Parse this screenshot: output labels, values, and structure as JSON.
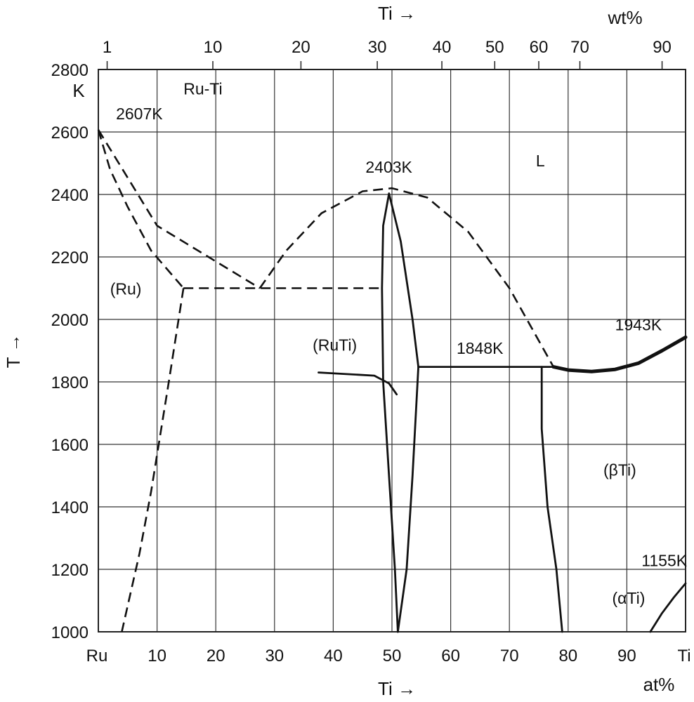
{
  "chart_data": {
    "type": "line",
    "title": "Ru-Ti",
    "xlabel_bottom": "Ti →",
    "xunit_bottom": "at%",
    "xlabel_top": "Ti →",
    "xunit_top": "wt%",
    "ylabel": "T →",
    "yunit": "K",
    "xlim": [
      0,
      100
    ],
    "ylim": [
      1000,
      2800
    ],
    "grid": true,
    "x_ticks": [
      {
        "value": 0,
        "label": "Ru"
      },
      {
        "value": 10,
        "label": "10"
      },
      {
        "value": 20,
        "label": "20"
      },
      {
        "value": 30,
        "label": "30"
      },
      {
        "value": 40,
        "label": "40"
      },
      {
        "value": 50,
        "label": "50"
      },
      {
        "value": 60,
        "label": "60"
      },
      {
        "value": 70,
        "label": "70"
      },
      {
        "value": 80,
        "label": "80"
      },
      {
        "value": 90,
        "label": "90"
      },
      {
        "value": 100,
        "label": "Ti"
      }
    ],
    "y_ticks": [
      1000,
      1200,
      1400,
      1600,
      1800,
      2000,
      2200,
      2400,
      2600,
      2800
    ],
    "top_ticks": [
      {
        "label": "1",
        "at": 1.5
      },
      {
        "label": "10",
        "at": 19.5
      },
      {
        "label": "20",
        "at": 34.5
      },
      {
        "label": "30",
        "at": 47.5
      },
      {
        "label": "40",
        "at": 58.5
      },
      {
        "label": "50",
        "at": 67.5
      },
      {
        "label": "60",
        "at": 75.0
      },
      {
        "label": "70",
        "at": 82.0
      },
      {
        "label": "90",
        "at": 96.0
      }
    ],
    "top_tick_markers": [
      1.5,
      19.5,
      34.5,
      47.5,
      58.5,
      67.5,
      75.0,
      82.0,
      96.0
    ],
    "annotations": [
      {
        "text": "2607K",
        "x": 3.0,
        "y": 2640
      },
      {
        "text": "Ru-Ti",
        "x": 14.5,
        "y": 2720
      },
      {
        "text": "2403K",
        "x": 45.5,
        "y": 2470
      },
      {
        "text": "L",
        "x": 74.5,
        "y": 2490
      },
      {
        "text": "(Ru)",
        "x": 2.0,
        "y": 2080
      },
      {
        "text": "(RuTi)",
        "x": 36.5,
        "y": 1900
      },
      {
        "text": "1848K",
        "x": 61.0,
        "y": 1890
      },
      {
        "text": "1943K",
        "x": 88.0,
        "y": 1965
      },
      {
        "text": "(βTi)",
        "x": 86.0,
        "y": 1500
      },
      {
        "text": "1155K",
        "x": 92.5,
        "y": 1210
      },
      {
        "text": "(αTi)",
        "x": 87.5,
        "y": 1090
      }
    ],
    "series": [
      {
        "style": "dashed",
        "points": [
          [
            0,
            2607
          ],
          [
            10,
            2300
          ],
          [
            27.5,
            2100
          ]
        ]
      },
      {
        "style": "dashed",
        "points": [
          [
            0,
            2607
          ],
          [
            2,
            2480
          ],
          [
            5,
            2360
          ],
          [
            9,
            2220
          ],
          [
            14.5,
            2100
          ]
        ]
      },
      {
        "style": "dashed",
        "points": [
          [
            14.5,
            2100
          ],
          [
            48.5,
            2100
          ]
        ]
      },
      {
        "style": "dashed",
        "points": [
          [
            27.5,
            2100
          ],
          [
            32,
            2220
          ],
          [
            38,
            2340
          ],
          [
            45,
            2410
          ],
          [
            50,
            2420
          ],
          [
            56,
            2390
          ],
          [
            63,
            2280
          ],
          [
            70,
            2100
          ],
          [
            77.5,
            1848
          ]
        ]
      },
      {
        "style": "dashed",
        "points": [
          [
            14.5,
            2100
          ],
          [
            12,
            1800
          ],
          [
            9,
            1450
          ],
          [
            7,
            1250
          ],
          [
            4,
            1000
          ]
        ]
      },
      {
        "style": "solid",
        "points": [
          [
            49.5,
            2403
          ],
          [
            48.5,
            2300
          ],
          [
            48.3,
            2100
          ],
          [
            48.5,
            1800
          ],
          [
            49.5,
            1500
          ],
          [
            50.5,
            1200
          ],
          [
            51.0,
            1000
          ]
        ]
      },
      {
        "style": "solid",
        "points": [
          [
            49.5,
            2403
          ],
          [
            51.5,
            2250
          ],
          [
            53.5,
            2000
          ],
          [
            54.5,
            1848
          ],
          [
            53.5,
            1500
          ],
          [
            52.5,
            1200
          ],
          [
            51.0,
            1000
          ]
        ]
      },
      {
        "style": "solid",
        "points": [
          [
            50.8,
            1760
          ],
          [
            49.5,
            1795
          ],
          [
            47.0,
            1820
          ],
          [
            37.5,
            1830
          ]
        ]
      },
      {
        "style": "solid",
        "points": [
          [
            54.5,
            1848
          ],
          [
            77.5,
            1848
          ]
        ]
      },
      {
        "style": "solid",
        "points": [
          [
            75.5,
            1848
          ],
          [
            75.5,
            1650
          ],
          [
            76.5,
            1400
          ],
          [
            78.0,
            1200
          ],
          [
            79.0,
            1000
          ]
        ]
      },
      {
        "style": "solid-thick",
        "points": [
          [
            77.5,
            1848
          ],
          [
            80,
            1838
          ],
          [
            84,
            1833
          ],
          [
            88,
            1840
          ],
          [
            92,
            1860
          ],
          [
            96,
            1900
          ],
          [
            100,
            1943
          ]
        ]
      },
      {
        "style": "solid",
        "points": [
          [
            94,
            1000
          ],
          [
            96,
            1060
          ],
          [
            98,
            1110
          ],
          [
            100,
            1155
          ]
        ]
      }
    ]
  }
}
